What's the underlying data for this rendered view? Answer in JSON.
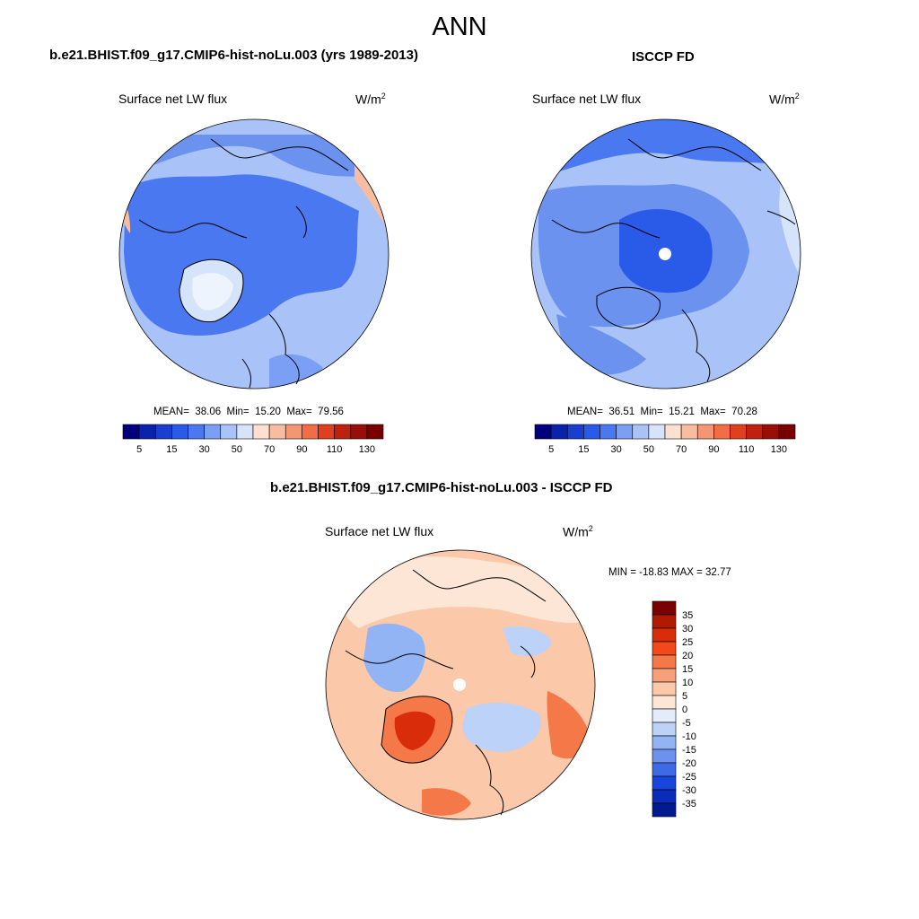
{
  "page_title": "ANN",
  "chart_data": [
    {
      "type": "heatmap",
      "title": "b.e21.BHIST.f09_g17.CMIP6-hist-noLu.003 (yrs 1989-2013)",
      "variable": "Surface net LW flux",
      "units_base": "W/m",
      "units_exp": "2",
      "projection": "north polar stereographic",
      "stats": {
        "mean_label": "MEAN=",
        "mean": "38.06",
        "min_label": "Min=",
        "min": "15.20",
        "max_label": "Max=",
        "max": "79.56"
      },
      "colorbar": {
        "orientation": "horizontal",
        "tick_labels": [
          "5",
          "15",
          "30",
          "50",
          "70",
          "90",
          "110",
          "130"
        ],
        "colors": [
          "#00007f",
          "#0a23ad",
          "#1a3fd0",
          "#2a5ae8",
          "#4a78f0",
          "#7b9ff5",
          "#a9c2f8",
          "#d6e4fb",
          "#fde0cf",
          "#f8bca0",
          "#f59672",
          "#f26c45",
          "#e0401f",
          "#bf2010",
          "#9a0d08",
          "#7a0000"
        ]
      }
    },
    {
      "type": "heatmap",
      "title": "ISCCP FD",
      "variable": "Surface net LW flux",
      "units_base": "W/m",
      "units_exp": "2",
      "projection": "north polar stereographic",
      "stats": {
        "mean_label": "MEAN=",
        "mean": "36.51",
        "min_label": "Min=",
        "min": "15.21",
        "max_label": "Max=",
        "max": "70.28"
      },
      "colorbar": {
        "orientation": "horizontal",
        "tick_labels": [
          "5",
          "15",
          "30",
          "50",
          "70",
          "90",
          "110",
          "130"
        ],
        "colors": [
          "#00007f",
          "#0a23ad",
          "#1a3fd0",
          "#2a5ae8",
          "#4a78f0",
          "#7b9ff5",
          "#a9c2f8",
          "#d6e4fb",
          "#fde0cf",
          "#f8bca0",
          "#f59672",
          "#f26c45",
          "#e0401f",
          "#bf2010",
          "#9a0d08",
          "#7a0000"
        ]
      }
    },
    {
      "type": "heatmap",
      "title": "b.e21.BHIST.f09_g17.CMIP6-hist-noLu.003 - ISCCP FD",
      "variable": "Surface net LW flux",
      "units_base": "W/m",
      "units_exp": "2",
      "projection": "north polar stereographic",
      "minmax_label": "MIN = -18.83 MAX =  32.77",
      "colorbar": {
        "orientation": "vertical",
        "tick_labels": [
          "35",
          "30",
          "25",
          "20",
          "15",
          "10",
          "5",
          "0",
          "-5",
          "-10",
          "-15",
          "-20",
          "-25",
          "-30",
          "-35"
        ],
        "colors": [
          "#7a0000",
          "#b01a00",
          "#d82c0a",
          "#f2481a",
          "#f57848",
          "#f8a07a",
          "#fbc8aa",
          "#fde6d6",
          "#e2ecfb",
          "#bcd2f8",
          "#93b4f4",
          "#6a92ee",
          "#3f6ae6",
          "#1a45dc",
          "#0a2cba",
          "#001a90"
        ]
      }
    }
  ]
}
